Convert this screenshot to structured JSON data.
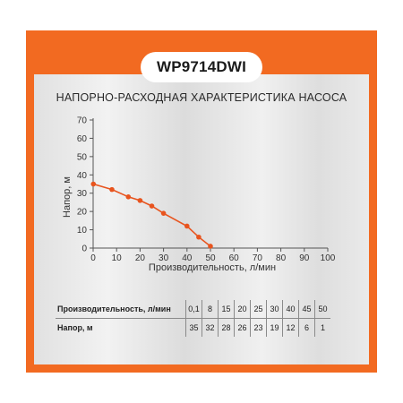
{
  "header": {
    "model": "WP9714DWI",
    "subtitle": "НАПОРНО-РАСХОДНАЯ ХАРАКТЕРИСТИКА НАСОСА"
  },
  "colors": {
    "accent": "#f26a21",
    "curve": "#e8541e"
  },
  "chart_data": {
    "type": "line",
    "title": "НАПОРНО-РАСХОДНАЯ ХАРАКТЕРИСТИКА НАСОСА",
    "xlabel": "Производительность, л/мин",
    "ylabel": "Напор, м",
    "xlim": [
      0,
      100
    ],
    "ylim": [
      0,
      70
    ],
    "xticks": [
      0,
      10,
      20,
      30,
      40,
      50,
      60,
      70,
      80,
      90,
      100
    ],
    "yticks": [
      0,
      10,
      20,
      30,
      40,
      50,
      60,
      70
    ],
    "grid": false,
    "x": [
      0.1,
      8,
      15,
      20,
      25,
      30,
      40,
      45,
      50
    ],
    "y": [
      35,
      32,
      28,
      26,
      23,
      19,
      12,
      6,
      1
    ]
  },
  "table": {
    "row1_label": "Производительность, л/мин",
    "row2_label": "Напор, м",
    "flow": [
      "0,1",
      "8",
      "15",
      "20",
      "25",
      "30",
      "40",
      "45",
      "50"
    ],
    "head": [
      "35",
      "32",
      "28",
      "26",
      "23",
      "19",
      "12",
      "6",
      "1"
    ]
  }
}
